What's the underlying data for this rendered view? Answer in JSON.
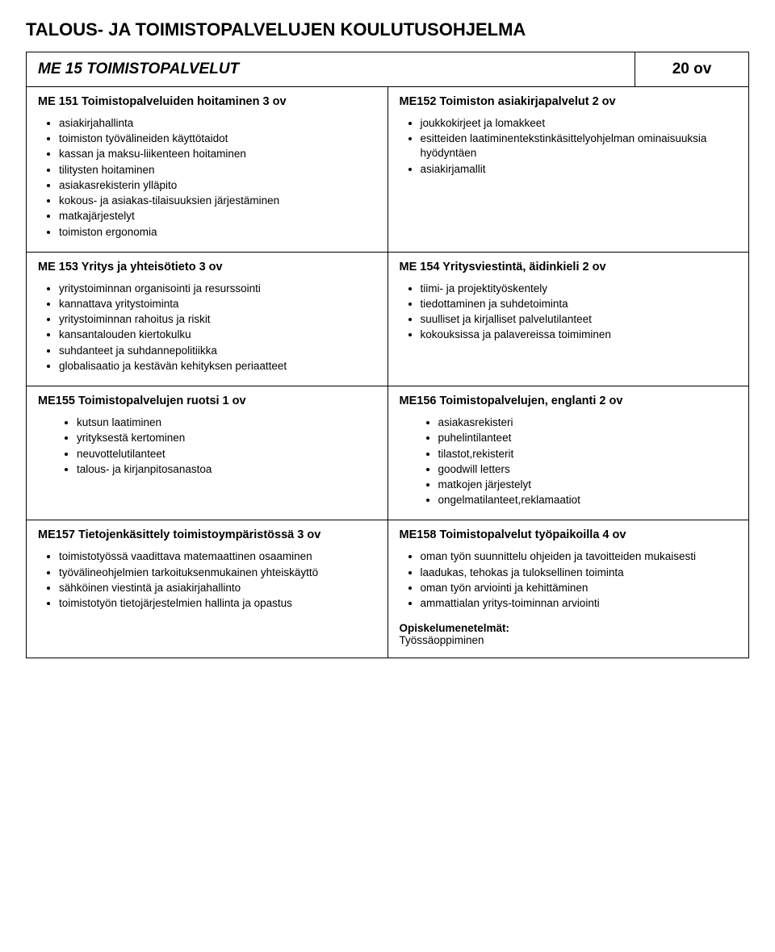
{
  "page_title": "TALOUS- JA TOIMISTOPALVELUJEN KOULUTUSOHJELMA",
  "header": {
    "left": "ME 15 TOIMISTOPALVELUT",
    "right": "20 ov"
  },
  "row1": {
    "left_heading": "ME 151 Toimistopalveluiden hoitaminen 3 ov",
    "left_items": [
      "asiakirjahallinta",
      "toimiston työvälineiden käyttötaidot",
      "kassan ja maksu-liikenteen hoitaminen",
      "tilitysten hoitaminen",
      "asiakasrekisterin ylläpito",
      "kokous- ja asiakas-tilaisuuksien järjestäminen",
      "matkajärjestelyt",
      "toimiston ergonomia"
    ],
    "right_heading": "ME152 Toimiston asiakirjapalvelut 2 ov",
    "right_items": [
      "joukkokirjeet ja lomakkeet",
      "esitteiden laatiminentekstinkäsittelyohjelman ominaisuuksia hyödyntäen",
      "asiakirjamallit"
    ]
  },
  "row2": {
    "left_heading": "ME 153 Yritys ja yhteisötieto 3 ov",
    "left_items": [
      "yritystoiminnan organisointi ja resurssointi",
      "kannattava yritystoiminta",
      "yritystoiminnan rahoitus ja riskit",
      "kansantalouden kiertokulku",
      "suhdanteet ja suhdannepolitiikka",
      "globalisaatio ja kestävän kehityksen periaatteet"
    ],
    "right_heading": "ME 154 Yritysviestintä, äidinkieli 2 ov",
    "right_items": [
      "tiimi- ja projektityöskentely",
      "tiedottaminen ja suhdetoiminta",
      "suulliset ja kirjalliset palvelutilanteet",
      "kokouksissa ja palavereissa toimiminen"
    ]
  },
  "row3": {
    "left_heading": "ME155 Toimistopalvelujen ruotsi 1 ov",
    "left_items": [
      "kutsun laatiminen",
      "yrityksestä kertominen",
      "neuvottelutilanteet",
      "talous- ja kirjanpitosanastoa"
    ],
    "right_heading": "ME156 Toimistopalvelujen, englanti 2 ov",
    "right_items": [
      "asiakasrekisteri",
      "puhelintilanteet",
      "tilastot,rekisterit",
      "goodwill letters",
      "matkojen järjestelyt",
      "ongelmatilanteet,reklamaatiot"
    ]
  },
  "row4": {
    "left_heading": "ME157 Tietojenkäsittely toimistoympäristössä 3 ov",
    "left_items": [
      "toimistotyössä vaadittava matemaattinen osaaminen",
      "työvälineohjelmien tarkoituksenmukainen yhteiskäyttö",
      "sähköinen viestintä ja asiakirjahallinto",
      "toimistotyön tietojärjestelmien hallinta ja opastus"
    ],
    "right_heading": "ME158 Toimistopalvelut työpaikoilla 4 ov",
    "right_items": [
      "oman työn suunnittelu ohjeiden ja tavoitteiden mukaisesti",
      "laadukas, tehokas ja tuloksellinen toiminta",
      "oman työn arviointi ja kehittäminen",
      "ammattialan yritys-toiminnan arviointi"
    ],
    "footer_label": "Opiskelumenetelmät:",
    "footer_text": "Työssäoppiminen"
  }
}
